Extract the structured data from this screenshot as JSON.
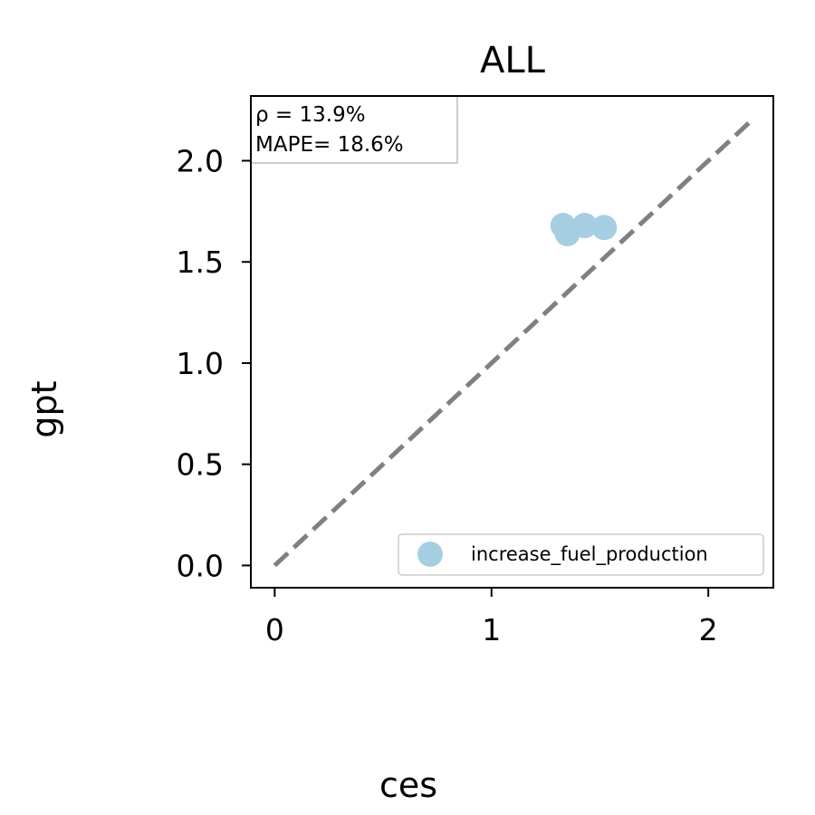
{
  "chart_data": {
    "type": "scatter",
    "title": "ALL",
    "xlabel": "ces",
    "ylabel": "gpt",
    "xlim": [
      -0.11,
      2.3
    ],
    "ylim": [
      -0.11,
      2.32
    ],
    "xticks": [
      0,
      1,
      2
    ],
    "yticks": [
      0.0,
      0.5,
      1.0,
      1.5,
      2.0
    ],
    "xtick_labels": [
      "0",
      "1",
      "2"
    ],
    "ytick_labels": [
      "0.0",
      "0.5",
      "1.0",
      "1.5",
      "2.0"
    ],
    "grid": false,
    "legend": "lower-right",
    "series": [
      {
        "name": "increase_fuel_production",
        "color": "#a6cee3",
        "x": [
          1.33,
          1.35,
          1.43,
          1.52
        ],
        "y": [
          1.68,
          1.64,
          1.68,
          1.67
        ]
      }
    ],
    "reference_line": {
      "style": "dashed",
      "color": "#808080",
      "from": [
        0,
        0
      ],
      "to": [
        2.2,
        2.2
      ]
    },
    "annotations": [
      "ρ = 13.9%",
      "MAPE= 18.6%"
    ]
  }
}
